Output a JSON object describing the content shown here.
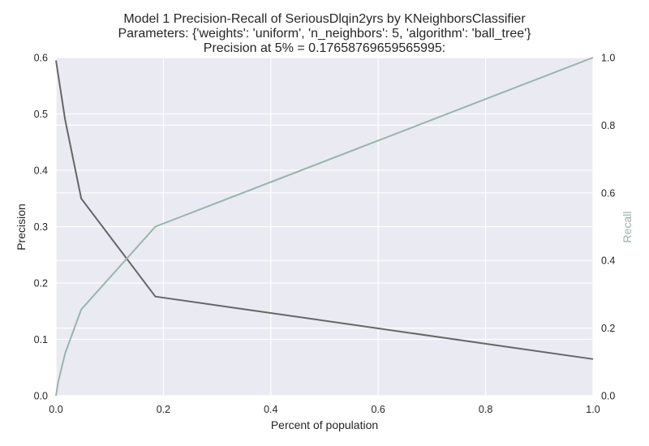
{
  "chart_data": {
    "type": "line",
    "title_lines": [
      "Model 1 Precision-Recall of SeriousDlqin2yrs by KNeighborsClassifier",
      "Parameters: {'weights': 'uniform', 'n_neighbors': 5, 'algorithm': 'ball_tree'}",
      "Precision at 5% = 0.17658769659565995:"
    ],
    "xlabel": "Percent of population",
    "ylabel_left": "Precision",
    "ylabel_right": "Recall",
    "xlim": [
      0.0,
      1.0
    ],
    "ylim_left": [
      0.0,
      0.6
    ],
    "ylim_right": [
      0.0,
      1.0
    ],
    "x_ticks": [
      "0.0",
      "0.2",
      "0.4",
      "0.6",
      "0.8",
      "1.0"
    ],
    "y_left_ticks": [
      "0.0",
      "0.1",
      "0.2",
      "0.3",
      "0.4",
      "0.5",
      "0.6"
    ],
    "y_right_ticks": [
      "0.0",
      "0.2",
      "0.4",
      "0.6",
      "0.8",
      "1.0"
    ],
    "grid": true,
    "colors": {
      "background": "#eaeaf2",
      "grid": "#ffffff",
      "precision": "#666666",
      "recall": "#98b5aa",
      "text": "#262626"
    },
    "series": [
      {
        "axis": "left",
        "x": [
          0.0,
          0.017,
          0.047,
          0.185,
          1.0
        ],
        "y": [
          0.595,
          0.49,
          0.35,
          0.176,
          0.065
        ]
      },
      {
        "axis": "right",
        "x": [
          0.0,
          0.004,
          0.017,
          0.047,
          0.185,
          1.0
        ],
        "y": [
          0.0,
          0.04,
          0.125,
          0.255,
          0.5,
          1.0
        ]
      }
    ]
  }
}
